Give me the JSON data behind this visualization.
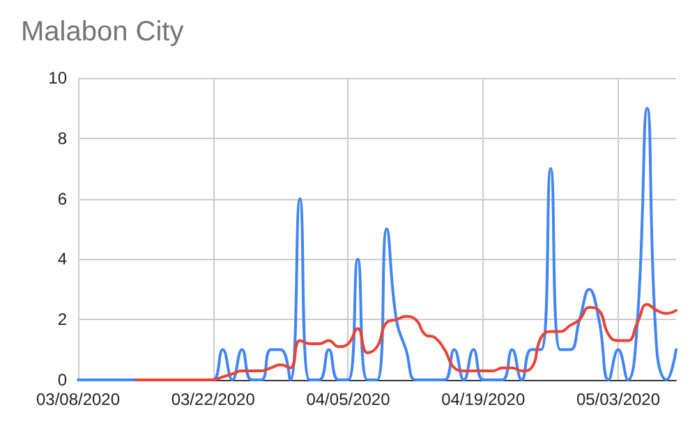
{
  "chart_data": {
    "type": "line",
    "title": "Malabon City",
    "x": [
      "2020-03-08",
      "2020-03-09",
      "2020-03-10",
      "2020-03-11",
      "2020-03-12",
      "2020-03-13",
      "2020-03-14",
      "2020-03-15",
      "2020-03-16",
      "2020-03-17",
      "2020-03-18",
      "2020-03-19",
      "2020-03-20",
      "2020-03-21",
      "2020-03-22",
      "2020-03-23",
      "2020-03-24",
      "2020-03-25",
      "2020-03-26",
      "2020-03-27",
      "2020-03-28",
      "2020-03-29",
      "2020-03-30",
      "2020-03-31",
      "2020-04-01",
      "2020-04-02",
      "2020-04-03",
      "2020-04-04",
      "2020-04-05",
      "2020-04-06",
      "2020-04-07",
      "2020-04-08",
      "2020-04-09",
      "2020-04-10",
      "2020-04-11",
      "2020-04-12",
      "2020-04-13",
      "2020-04-14",
      "2020-04-15",
      "2020-04-16",
      "2020-04-17",
      "2020-04-18",
      "2020-04-19",
      "2020-04-20",
      "2020-04-21",
      "2020-04-22",
      "2020-04-23",
      "2020-04-24",
      "2020-04-25",
      "2020-04-26",
      "2020-04-27",
      "2020-04-28",
      "2020-04-29",
      "2020-04-30",
      "2020-05-01",
      "2020-05-02",
      "2020-05-03",
      "2020-05-04",
      "2020-05-05",
      "2020-05-06",
      "2020-05-07",
      "2020-05-08",
      "2020-05-09"
    ],
    "series": [
      {
        "color": "#4285f4",
        "values": [
          0,
          0,
          0,
          0,
          0,
          0,
          0,
          0,
          0,
          0,
          0,
          0,
          0,
          0,
          0,
          1,
          0,
          1,
          0,
          0,
          1,
          1,
          0,
          6,
          0,
          0,
          1,
          0,
          0,
          4,
          0,
          0,
          5,
          2,
          1,
          0,
          0,
          0,
          0,
          1,
          0,
          1,
          0,
          0,
          0,
          1,
          0,
          1,
          1,
          7,
          1,
          1,
          2,
          3,
          2,
          0,
          1,
          0,
          2,
          9,
          1,
          0,
          1
        ]
      },
      {
        "color": "#ea4335",
        "values": [
          null,
          null,
          null,
          null,
          null,
          null,
          0,
          0,
          0,
          0,
          0,
          0,
          0,
          0,
          0,
          0.1,
          0.2,
          0.3,
          0.3,
          0.3,
          0.4,
          0.5,
          0.4,
          1.3,
          1.2,
          1.2,
          1.3,
          1.1,
          1.2,
          1.7,
          0.9,
          1.1,
          1.9,
          2.0,
          2.1,
          2.0,
          1.5,
          1.4,
          1.0,
          0.4,
          0.3,
          0.3,
          0.3,
          0.3,
          0.4,
          0.4,
          0.3,
          0.4,
          1.4,
          1.6,
          1.6,
          1.8,
          2.0,
          2.4,
          2.3,
          1.5,
          1.3,
          1.3,
          1.9,
          2.5,
          2.3,
          2.2,
          2.3
        ]
      }
    ],
    "xlim": [
      "2020-03-08",
      "2020-05-09"
    ],
    "xticks": [
      {
        "value": "2020-03-08",
        "label": "03/08/2020"
      },
      {
        "value": "2020-03-22",
        "label": "03/22/2020"
      },
      {
        "value": "2020-04-05",
        "label": "04/05/2020"
      },
      {
        "value": "2020-04-19",
        "label": "04/19/2020"
      },
      {
        "value": "2020-05-03",
        "label": "05/03/2020"
      }
    ],
    "ylim": [
      0,
      10
    ],
    "yticks": [
      0,
      2,
      4,
      6,
      8,
      10
    ],
    "grid": true,
    "marker": "none",
    "line_style": "solid"
  }
}
